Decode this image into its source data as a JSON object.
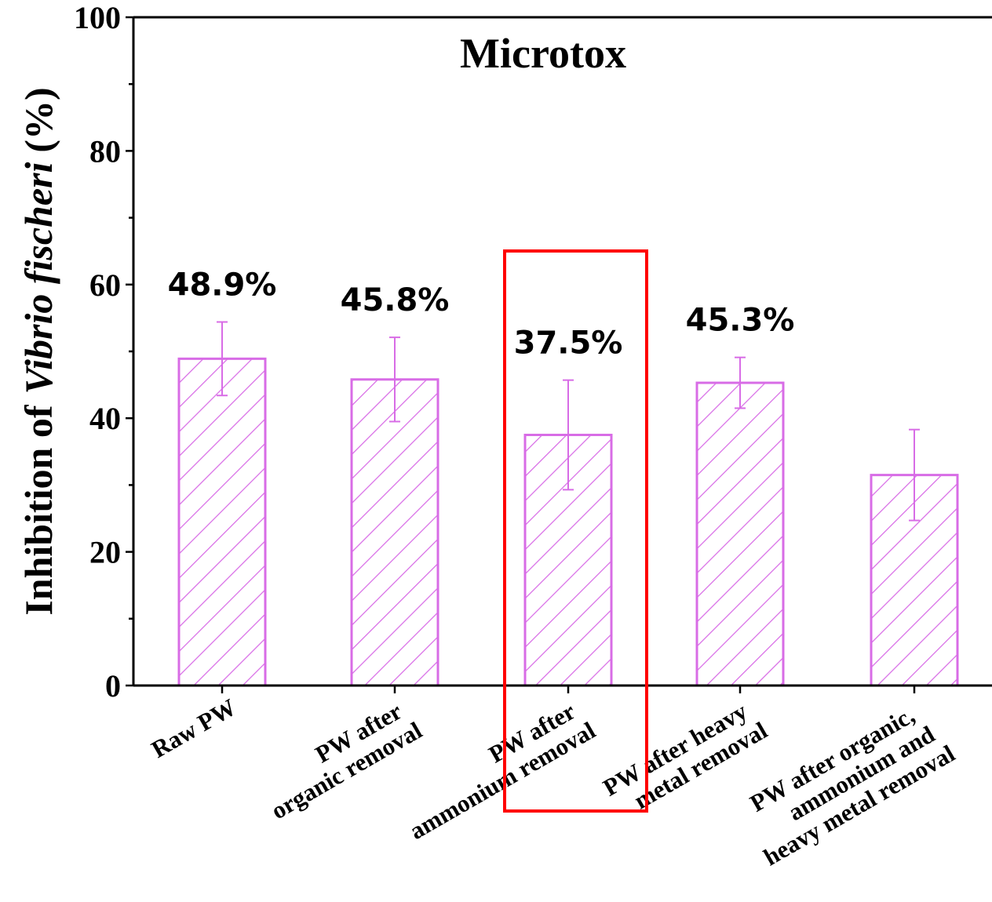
{
  "chart_data": {
    "type": "bar",
    "title": "Microtox",
    "ylabel_prefix": "Inhibition of",
    "ylabel_italic": "Vibrio fischeri",
    "ylabel_suffix": "(%)",
    "xlabel": "",
    "ylim": [
      0,
      100
    ],
    "yticks": [
      "0",
      "20",
      "40",
      "60",
      "80",
      "100"
    ],
    "categories": [
      [
        "Raw PW"
      ],
      [
        "PW after",
        "organic removal"
      ],
      [
        "PW after",
        "ammonium removal"
      ],
      [
        "PW after heavy",
        "metal removal"
      ],
      [
        "PW after organic,",
        "ammonium and",
        "heavy metal removal"
      ]
    ],
    "values": [
      48.9,
      45.8,
      37.5,
      45.3,
      31.5
    ],
    "errors": [
      5.5,
      6.3,
      8.2,
      3.8,
      6.8
    ],
    "data_labels": [
      "48.9%",
      "45.8%",
      "37.5%",
      "45.3%",
      ""
    ],
    "highlight_index": 2,
    "bar_color": "#d86ce6",
    "highlight_color": "#ff0000",
    "label_color": "#000000",
    "grid": false
  }
}
